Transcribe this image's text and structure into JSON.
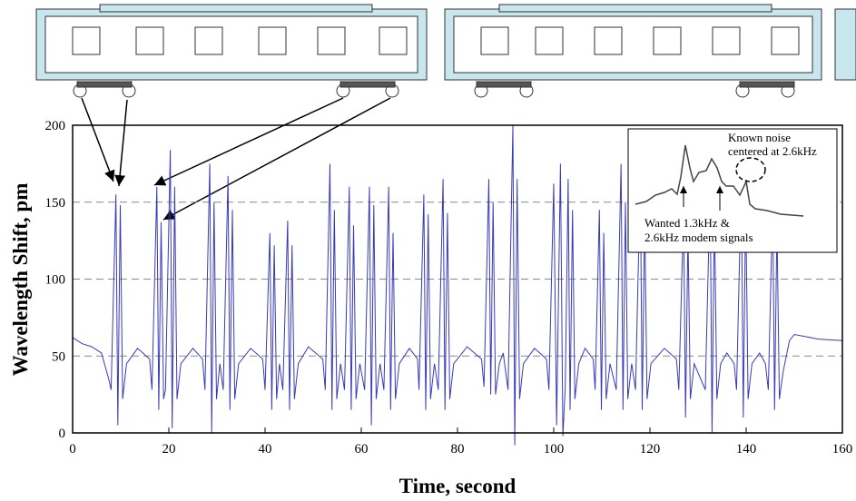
{
  "chart_data": {
    "type": "line",
    "xlabel": "Time, second",
    "ylabel": "Wavelength Shift, pm",
    "xlim": [
      0,
      160
    ],
    "ylim": [
      0,
      200
    ],
    "xticks": [
      0,
      20,
      40,
      60,
      80,
      100,
      120,
      140,
      160
    ],
    "yticks": [
      0,
      50,
      100,
      150,
      200
    ],
    "grid": true,
    "annotations": [
      "Known noise",
      "centered at 2.6kHz",
      "Wanted 1.3kHz &",
      "2.6kHz modem signals"
    ],
    "x": [
      0,
      2,
      4,
      6,
      7.5,
      8,
      9,
      9.4,
      9.9,
      10.4,
      11.2,
      13.5,
      16,
      16.5,
      17.5,
      17.9,
      18.4,
      18.9,
      19.3,
      20.3,
      20.7,
      21.2,
      21.7,
      22.5,
      25,
      27,
      27.5,
      28.5,
      28.9,
      29.4,
      29.9,
      30.6,
      31.3,
      32.3,
      32.7,
      33.2,
      33.7,
      34.5,
      37,
      39.5,
      40,
      41,
      41.4,
      41.9,
      42.4,
      43,
      43.7,
      44.7,
      45.1,
      45.6,
      46.1,
      46.9,
      49,
      52,
      52.5,
      53.5,
      53.9,
      54.4,
      54.9,
      55.7,
      56.5,
      57.5,
      57.9,
      58.4,
      58.9,
      59.7,
      60.7,
      61.7,
      62.1,
      62.6,
      63.1,
      63.9,
      64.7,
      65.7,
      66.1,
      66.6,
      67.1,
      67.9,
      70,
      71.7,
      72,
      73,
      73.4,
      73.9,
      74.4,
      75.2,
      76,
      77,
      77.4,
      77.9,
      78.4,
      79.2,
      82,
      85,
      85.5,
      86.5,
      86.9,
      87.4,
      87.9,
      88.7,
      89.5,
      90.5,
      91.5,
      91.9,
      92.4,
      92.9,
      93.7,
      96,
      98.5,
      99,
      100,
      100.6,
      101.4,
      101.9,
      102.4,
      103,
      103.4,
      103.9,
      104.4,
      105.2,
      106.5,
      108.2,
      108.6,
      109.5,
      109.9,
      110.4,
      110.9,
      111.7,
      113,
      114,
      114.4,
      114.9,
      115.4,
      116.2,
      117,
      118,
      118.4,
      118.9,
      119.4,
      120.2,
      123,
      125.5,
      126,
      127,
      127.4,
      127.9,
      128.4,
      129.2,
      131.5,
      132.5,
      132.9,
      133.4,
      133.9,
      134.7,
      136,
      137.5,
      138,
      139,
      139.4,
      139.9,
      140.4,
      141.2,
      142.8,
      144,
      144.6,
      145.5,
      145.9,
      146.4,
      146.9,
      147.7,
      149,
      150,
      155,
      160
    ],
    "series": [
      {
        "color": "#3a3ab8",
        "values": [
          62,
          58,
          56,
          52,
          35,
          28,
          155,
          5,
          148,
          22,
          45,
          55,
          48,
          28,
          160,
          15,
          137,
          22,
          28,
          184,
          3,
          160,
          22,
          45,
          55,
          48,
          28,
          175,
          0,
          150,
          22,
          45,
          28,
          167,
          15,
          145,
          22,
          45,
          55,
          48,
          28,
          130,
          15,
          122,
          22,
          45,
          28,
          138,
          15,
          122,
          22,
          45,
          56,
          48,
          28,
          175,
          15,
          145,
          22,
          45,
          28,
          160,
          15,
          135,
          22,
          45,
          28,
          160,
          5,
          148,
          22,
          45,
          28,
          160,
          15,
          130,
          22,
          45,
          55,
          48,
          28,
          155,
          15,
          142,
          22,
          45,
          28,
          165,
          15,
          143,
          22,
          45,
          56,
          48,
          30,
          165,
          25,
          150,
          25,
          45,
          52,
          28,
          200,
          -8,
          165,
          22,
          45,
          55,
          48,
          28,
          162,
          5,
          175,
          -2,
          30,
          165,
          15,
          145,
          22,
          45,
          55,
          48,
          28,
          145,
          15,
          130,
          22,
          45,
          28,
          175,
          15,
          150,
          22,
          45,
          28,
          165,
          15,
          143,
          22,
          45,
          55,
          48,
          28,
          145,
          10,
          130,
          22,
          45,
          28,
          160,
          0,
          145,
          22,
          45,
          52,
          45,
          28,
          165,
          10,
          150,
          22,
          45,
          52,
          45,
          28,
          150,
          15,
          135,
          22,
          40,
          60,
          64,
          61,
          60
        ]
      }
    ]
  }
}
